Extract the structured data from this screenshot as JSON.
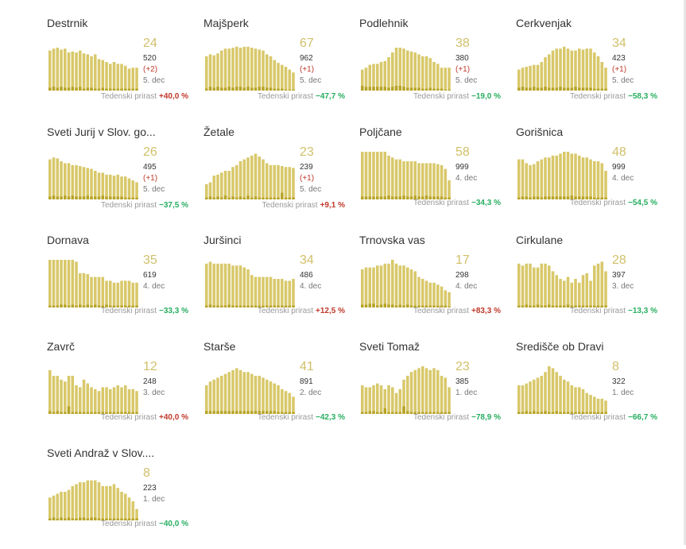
{
  "ui": {
    "growth_label": "Tedenski prirast"
  },
  "colors": {
    "bar": "#d8c86a",
    "bar_dark": "#b7a326",
    "big_number": "#d1c06a",
    "up": "#c0392b",
    "down": "#27ae60"
  },
  "chart_data": [
    {
      "type": "bar",
      "title": "Destrnik",
      "big": "24",
      "total": "520",
      "delta": "(+2)",
      "date": "5. dec",
      "growth": "+40,0 %",
      "trend": "up",
      "values": [
        42,
        44,
        45,
        43,
        44,
        40,
        41,
        40,
        42,
        39,
        38,
        36,
        38,
        33,
        32,
        30,
        28,
        30,
        28,
        28,
        26,
        23,
        24,
        24
      ],
      "low": [
        3,
        4,
        3,
        4,
        3,
        3,
        4,
        3,
        4,
        2,
        3,
        3,
        2,
        2,
        3,
        2,
        2,
        2,
        2,
        2,
        2,
        2,
        2,
        2
      ]
    },
    {
      "type": "bar",
      "title": "Majšperk",
      "big": "67",
      "total": "962",
      "delta": "(+1)",
      "date": "5. dec",
      "growth": "−47,7 %",
      "trend": "down",
      "values": [
        36,
        38,
        37,
        39,
        42,
        44,
        44,
        45,
        46,
        45,
        46,
        46,
        45,
        44,
        43,
        42,
        38,
        36,
        32,
        29,
        27,
        25,
        22,
        19
      ],
      "low": [
        2,
        4,
        3,
        4,
        3,
        3,
        4,
        3,
        4,
        4,
        3,
        4,
        3,
        3,
        4,
        4,
        3,
        3,
        2,
        2,
        2,
        1,
        1,
        1
      ]
    },
    {
      "type": "bar",
      "title": "Podlehnik",
      "big": "38",
      "total": "380",
      "delta": "(+1)",
      "date": "5. dec",
      "growth": "−19,0 %",
      "trend": "down",
      "values": [
        22,
        24,
        27,
        28,
        28,
        30,
        31,
        35,
        40,
        45,
        45,
        44,
        42,
        41,
        40,
        38,
        36,
        36,
        34,
        30,
        28,
        24,
        24,
        24
      ],
      "low": [
        5,
        4,
        4,
        4,
        4,
        4,
        4,
        3,
        4,
        5,
        5,
        4,
        3,
        3,
        3,
        3,
        2,
        2,
        3,
        2,
        2,
        2,
        1,
        1
      ]
    },
    {
      "type": "bar",
      "title": "Cerkvenjak",
      "big": "34",
      "total": "423",
      "delta": "(+1)",
      "date": "5. dec",
      "growth": "−58,3 %",
      "trend": "down",
      "values": [
        22,
        24,
        25,
        26,
        27,
        27,
        30,
        35,
        38,
        42,
        44,
        44,
        46,
        44,
        42,
        42,
        44,
        43,
        44,
        44,
        40,
        36,
        30,
        24
      ],
      "low": [
        3,
        4,
        3,
        3,
        4,
        3,
        3,
        4,
        3,
        3,
        3,
        4,
        3,
        3,
        3,
        4,
        3,
        3,
        3,
        3,
        2,
        2,
        2,
        2
      ]
    },
    {
      "type": "bar",
      "title": "Sveti Jurij v Slov. go...",
      "big": "26",
      "total": "495",
      "delta": "(+1)",
      "date": "5. dec",
      "growth": "−37,5 %",
      "trend": "down",
      "values": [
        42,
        44,
        43,
        40,
        38,
        38,
        36,
        36,
        35,
        34,
        33,
        32,
        30,
        28,
        28,
        26,
        26,
        25,
        26,
        24,
        24,
        22,
        20,
        18
      ],
      "low": [
        3,
        4,
        3,
        3,
        4,
        3,
        4,
        3,
        3,
        3,
        4,
        3,
        3,
        3,
        4,
        3,
        3,
        3,
        3,
        3,
        2,
        2,
        2,
        2
      ]
    },
    {
      "type": "bar",
      "title": "Žetale",
      "big": "23",
      "total": "239",
      "delta": "(+1)",
      "date": "5. dec",
      "growth": "+9,1 %",
      "trend": "up",
      "values": [
        16,
        18,
        25,
        26,
        28,
        30,
        30,
        34,
        36,
        40,
        42,
        44,
        46,
        48,
        45,
        42,
        38,
        36,
        36,
        36,
        35,
        34,
        34,
        33
      ],
      "low": [
        2,
        3,
        2,
        3,
        2,
        4,
        2,
        3,
        2,
        3,
        2,
        4,
        2,
        3,
        2,
        2,
        2,
        2,
        2,
        2,
        7,
        2,
        2,
        2
      ]
    },
    {
      "type": "bar",
      "title": "Poljčane",
      "big": "58",
      "total": "999",
      "delta": "",
      "date": "4. dec",
      "growth": "−34,3 %",
      "trend": "down",
      "values": [
        50,
        50,
        50,
        50,
        50,
        50,
        50,
        46,
        44,
        42,
        42,
        40,
        40,
        40,
        40,
        38,
        38,
        38,
        38,
        38,
        37,
        36,
        32,
        20
      ],
      "low": [
        3,
        3,
        3,
        3,
        3,
        3,
        3,
        4,
        3,
        3,
        3,
        4,
        3,
        3,
        4,
        3,
        3,
        4,
        3,
        3,
        3,
        3,
        2,
        2
      ]
    },
    {
      "type": "bar",
      "title": "Gorišnica",
      "big": "48",
      "total": "999",
      "delta": "",
      "date": "4. dec",
      "growth": "−54,5 %",
      "trend": "down",
      "values": [
        42,
        42,
        38,
        36,
        37,
        40,
        42,
        44,
        44,
        46,
        46,
        48,
        50,
        50,
        48,
        48,
        46,
        44,
        44,
        42,
        40,
        40,
        38,
        30
      ],
      "low": [
        2,
        3,
        3,
        2,
        3,
        3,
        2,
        3,
        3,
        3,
        3,
        3,
        3,
        3,
        4,
        3,
        3,
        3,
        3,
        3,
        2,
        2,
        2,
        2
      ]
    },
    {
      "type": "bar",
      "title": "Dornava",
      "big": "35",
      "total": "619",
      "delta": "",
      "date": "4. dec",
      "growth": "−33,3 %",
      "trend": "down",
      "values": [
        50,
        50,
        50,
        50,
        50,
        50,
        50,
        48,
        36,
        36,
        35,
        32,
        32,
        32,
        32,
        28,
        28,
        26,
        26,
        28,
        28,
        28,
        26,
        26
      ],
      "low": [
        2,
        2,
        2,
        3,
        3,
        2,
        3,
        2,
        3,
        2,
        3,
        2,
        3,
        2,
        2,
        3,
        2,
        2,
        2,
        2,
        2,
        2,
        2,
        2
      ]
    },
    {
      "type": "bar",
      "title": "Juršinci",
      "big": "34",
      "total": "486",
      "delta": "",
      "date": "4. dec",
      "growth": "+12,5 %",
      "trend": "up",
      "values": [
        46,
        48,
        46,
        46,
        46,
        46,
        46,
        44,
        44,
        44,
        42,
        40,
        34,
        32,
        32,
        32,
        32,
        32,
        30,
        30,
        30,
        28,
        28,
        30
      ],
      "low": [
        2,
        3,
        2,
        2,
        2,
        2,
        3,
        2,
        2,
        2,
        2,
        2,
        2,
        2,
        2,
        2,
        2,
        2,
        2,
        2,
        2,
        2,
        2,
        2
      ]
    },
    {
      "type": "bar",
      "title": "Trnovska vas",
      "big": "17",
      "total": "298",
      "delta": "",
      "date": "4. dec",
      "growth": "+83,3 %",
      "trend": "up",
      "values": [
        40,
        42,
        42,
        42,
        44,
        44,
        46,
        46,
        50,
        46,
        44,
        44,
        42,
        40,
        38,
        32,
        30,
        28,
        26,
        26,
        24,
        22,
        18,
        16
      ],
      "low": [
        3,
        3,
        4,
        4,
        2,
        3,
        4,
        3,
        3,
        2,
        3,
        2,
        3,
        2,
        2,
        2,
        2,
        2,
        2,
        2,
        2,
        2,
        2,
        1
      ]
    },
    {
      "type": "bar",
      "title": "Cirkulane",
      "big": "28",
      "total": "397",
      "delta": "",
      "date": "3. dec",
      "growth": "−13,3 %",
      "trend": "down",
      "values": [
        46,
        44,
        46,
        46,
        42,
        42,
        46,
        46,
        44,
        38,
        34,
        30,
        28,
        32,
        26,
        30,
        26,
        34,
        36,
        28,
        44,
        46,
        48,
        38
      ],
      "low": [
        2,
        2,
        3,
        2,
        2,
        3,
        2,
        2,
        3,
        2,
        2,
        2,
        2,
        3,
        2,
        2,
        2,
        2,
        2,
        2,
        2,
        2,
        2,
        2
      ]
    },
    {
      "type": "bar",
      "title": "Zavrč",
      "big": "12",
      "total": "248",
      "delta": "",
      "date": "3. dec",
      "growth": "+40,0 %",
      "trend": "up",
      "values": [
        46,
        40,
        40,
        36,
        34,
        40,
        40,
        30,
        28,
        36,
        32,
        28,
        26,
        24,
        28,
        28,
        26,
        28,
        30,
        28,
        30,
        26,
        26,
        24
      ],
      "low": [
        3,
        2,
        3,
        2,
        2,
        8,
        2,
        2,
        2,
        2,
        2,
        2,
        2,
        2,
        2,
        2,
        2,
        2,
        2,
        2,
        2,
        2,
        2,
        2
      ]
    },
    {
      "type": "bar",
      "title": "Starše",
      "big": "41",
      "total": "891",
      "delta": "",
      "date": "2. dec",
      "growth": "−42,3 %",
      "trend": "down",
      "values": [
        30,
        34,
        36,
        38,
        40,
        42,
        44,
        46,
        48,
        46,
        44,
        44,
        42,
        40,
        40,
        38,
        36,
        34,
        32,
        30,
        26,
        24,
        22,
        18
      ],
      "low": [
        3,
        3,
        3,
        3,
        3,
        3,
        3,
        3,
        3,
        3,
        3,
        3,
        3,
        3,
        3,
        3,
        3,
        3,
        3,
        2,
        2,
        2,
        2,
        2
      ]
    },
    {
      "type": "bar",
      "title": "Sveti Tomaž",
      "big": "23",
      "total": "385",
      "delta": "",
      "date": "1. dec",
      "growth": "−78,9 %",
      "trend": "down",
      "values": [
        30,
        28,
        28,
        30,
        32,
        30,
        26,
        30,
        28,
        22,
        26,
        36,
        40,
        44,
        46,
        48,
        50,
        48,
        46,
        48,
        46,
        40,
        38,
        28
      ],
      "low": [
        2,
        2,
        3,
        3,
        2,
        2,
        6,
        2,
        2,
        2,
        2,
        8,
        3,
        2,
        2,
        2,
        2,
        2,
        2,
        2,
        2,
        2,
        2,
        2
      ]
    },
    {
      "type": "bar",
      "title": "Središče ob Dravi",
      "big": "8",
      "total": "322",
      "delta": "",
      "date": "1. dec",
      "growth": "−66,7 %",
      "trend": "down",
      "values": [
        30,
        30,
        32,
        34,
        36,
        38,
        40,
        44,
        50,
        48,
        44,
        40,
        36,
        34,
        30,
        28,
        28,
        26,
        22,
        20,
        18,
        16,
        16,
        14
      ],
      "low": [
        2,
        2,
        3,
        2,
        3,
        2,
        2,
        3,
        2,
        2,
        3,
        2,
        2,
        2,
        2,
        2,
        2,
        2,
        2,
        2,
        2,
        2,
        2,
        2
      ]
    },
    {
      "type": "bar",
      "title": "Sveti Andraž v Slov....",
      "big": "8",
      "total": "223",
      "delta": "",
      "date": "1. dec",
      "growth": "−40,0 %",
      "trend": "down",
      "values": [
        24,
        26,
        28,
        30,
        30,
        32,
        36,
        38,
        40,
        40,
        42,
        42,
        42,
        40,
        36,
        36,
        36,
        38,
        34,
        30,
        28,
        24,
        20,
        12
      ],
      "low": [
        2,
        3,
        2,
        3,
        2,
        3,
        2,
        2,
        3,
        3,
        2,
        3,
        3,
        2,
        2,
        2,
        2,
        2,
        2,
        2,
        2,
        2,
        2,
        2
      ]
    }
  ]
}
